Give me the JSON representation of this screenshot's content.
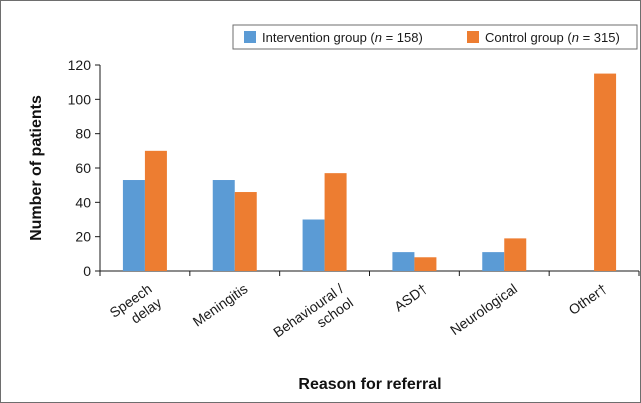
{
  "chart_data": {
    "type": "bar",
    "categories": [
      "Speech delay",
      "Meningitis",
      "Behavioural / school",
      "ASD†",
      "Neurological",
      "Other†"
    ],
    "category_lines": [
      [
        "Speech",
        "delay"
      ],
      [
        "Meningitis"
      ],
      [
        "Behavioural /",
        "school"
      ],
      [
        "ASD†"
      ],
      [
        "Neurological"
      ],
      [
        "Other†"
      ]
    ],
    "series": [
      {
        "name_prefix": "Intervention group (",
        "name_italic": "n",
        "name_suffix": " = 158)",
        "color": "#5b9bd5",
        "values": [
          53,
          53,
          30,
          11,
          11,
          0
        ]
      },
      {
        "name_prefix": "Control group (",
        "name_italic": "n",
        "name_suffix": " = 315)",
        "color": "#ed7d31",
        "values": [
          70,
          46,
          57,
          8,
          19,
          115
        ]
      }
    ],
    "ylabel": "Number of patients",
    "xlabel": "Reason for referral",
    "ylim": [
      0,
      120
    ],
    "yticks": [
      0,
      20,
      40,
      60,
      80,
      100,
      120
    ],
    "legend_position": "top-right",
    "grid": false
  }
}
